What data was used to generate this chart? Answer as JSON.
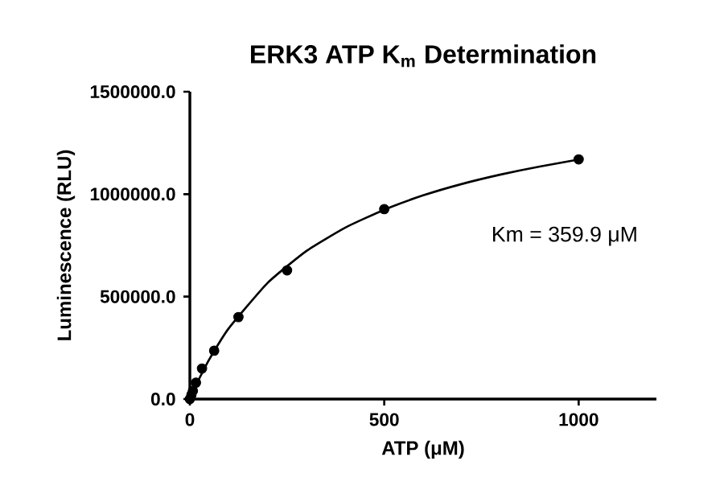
{
  "chart_data": {
    "type": "scatter",
    "title": "ERK3 ATP K$_{m}$ Determination",
    "xlabel": "ATP (μM)",
    "ylabel": "Luminescence (RLU)",
    "annotations": [
      "Km = 359.9 μM"
    ],
    "xlim": [
      0,
      1200
    ],
    "xticks": [
      0,
      500,
      1000
    ],
    "ylim": [
      0,
      1500000
    ],
    "yticks": [
      {
        "value": 0,
        "label": "0.0"
      },
      {
        "value": 500000,
        "label": "500000.0"
      },
      {
        "value": 1000000,
        "label": "1000000.0"
      },
      {
        "value": 1500000,
        "label": "1500000.0"
      }
    ],
    "grid": false,
    "series": [
      {
        "color": "#000000",
        "marker": "circle",
        "x": [
          0,
          3.9,
          7.8,
          15.6,
          31.25,
          62.5,
          125,
          250,
          500,
          1000
        ],
        "values": [
          0,
          20000,
          40000,
          80000,
          149000,
          236000,
          400000,
          628000,
          927000,
          1170000
        ]
      },
      {
        "type": "line",
        "color": "#000000",
        "line_style": "solid",
        "x": [
          0,
          10,
          25,
          50,
          100,
          200,
          300,
          400,
          500,
          600,
          700,
          800,
          900,
          1000
        ],
        "values": [
          0,
          43000,
          103000,
          194000,
          345000,
          567000,
          723000,
          837000,
          924000,
          994000,
          1050000,
          1096000,
          1135000,
          1169000
        ]
      }
    ]
  }
}
